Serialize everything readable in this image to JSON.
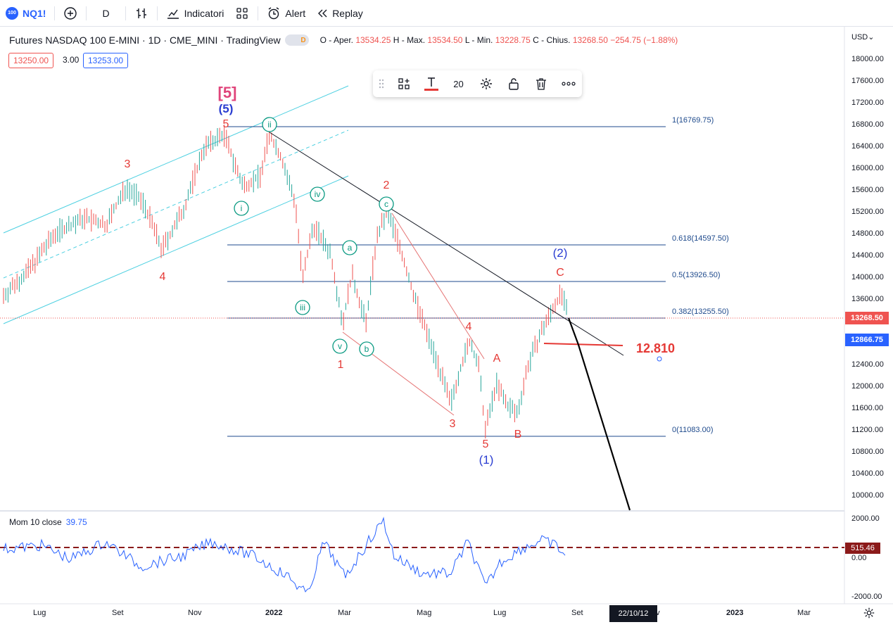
{
  "topbar": {
    "symbol_badge": "100",
    "symbol": "NQ1!",
    "interval": "D",
    "indicators": "Indicatori",
    "alert": "Alert",
    "replay": "Replay"
  },
  "legend": {
    "title": "Futures NASDAQ 100 E-MINI · 1D · CME_MINI · TradingView",
    "badge": "D",
    "o_label": "O - Aper.",
    "o": "13534.25",
    "h_label": "H - Max.",
    "h": "13534.50",
    "l_label": "L - Min.",
    "l": "13228.75",
    "c_label": "C - Chius.",
    "c": "13268.50",
    "change": "−254.75 (−1.88%)",
    "bid": "13250.00",
    "spread": "3.00",
    "ask": "13253.00"
  },
  "toolbar": {
    "size": "20"
  },
  "currency": "USD",
  "price_axis": [
    "18000.00",
    "17600.00",
    "17200.00",
    "16800.00",
    "16400.00",
    "16000.00",
    "15600.00",
    "15200.00",
    "14800.00",
    "14400.00",
    "14000.00",
    "13600.00",
    "12400.00",
    "12000.00",
    "11600.00",
    "11200.00",
    "10800.00",
    "10400.00",
    "10000.00"
  ],
  "price_current": "13268.50",
  "price_line": "12866.75",
  "mom_axis": [
    "2000.00",
    "0.00",
    "-2000.00"
  ],
  "mom_value": "515.46",
  "momentum": {
    "label": "Mom 10 close",
    "value": "39.75"
  },
  "time_axis": [
    "Lug",
    "Set",
    "Nov",
    "2022",
    "Mar",
    "Mag",
    "Lug",
    "Set",
    "ov",
    "2023",
    "Mar"
  ],
  "time_marker": "22/10/12",
  "fib_levels": [
    {
      "label": "1(16769.75)",
      "price": 16769.75
    },
    {
      "label": "0.618(14597.50)",
      "price": 14597.5
    },
    {
      "label": "0.5(13926.50)",
      "price": 13926.5
    },
    {
      "label": "0.382(13255.50)",
      "price": 13255.5
    },
    {
      "label": "0(11083.00)",
      "price": 11083
    }
  ],
  "annotation_target": "12.810",
  "wave_labels": {
    "w5_big": "[5]",
    "w5_paren": "(5)",
    "w1_paren": "(1)",
    "w2_paren": "(2)",
    "r5a": "5",
    "r3a": "3",
    "r4a": "4",
    "r1": "1",
    "r2": "2",
    "r3b": "3",
    "r4b": "4",
    "r5b": "5",
    "A": "A",
    "B": "B",
    "C": "C",
    "g_ii": "ii",
    "g_i": "i",
    "g_iv": "iv",
    "g_iii": "iii",
    "g_v": "v",
    "g_a": "a",
    "g_b": "b",
    "g_c": "c"
  },
  "colors": {
    "accent": "#2962ff",
    "red": "#e53935",
    "green": "#089981",
    "channel": "#4dd0e1",
    "fib": "#1e4a8c"
  }
}
